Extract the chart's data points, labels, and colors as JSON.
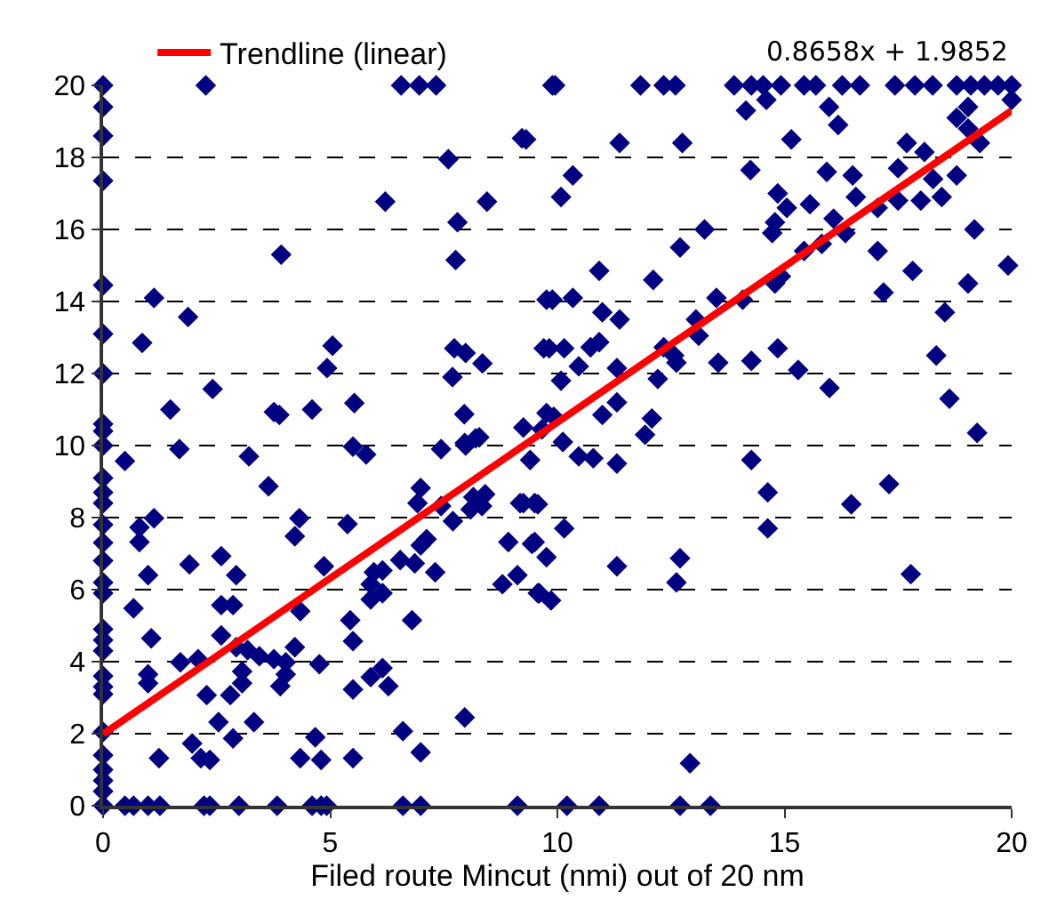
{
  "chart_data": {
    "type": "scatter",
    "xlabel": "Filed route Mincut (nmi) out of 20 nm",
    "xlim": [
      0,
      20
    ],
    "xticks": [
      0,
      5,
      10,
      15,
      20
    ],
    "ylim": [
      0,
      20
    ],
    "yticks": [
      0,
      2,
      4,
      6,
      8,
      10,
      12,
      14,
      16,
      18,
      20
    ],
    "grid": "y",
    "legend": "top",
    "marker": "diamond",
    "annotations": [
      "0.8658x + 1.9852"
    ],
    "series": [
      {
        "color": "#000080",
        "x": [
          0,
          0,
          0,
          0,
          0,
          0,
          0,
          0,
          0,
          0,
          0,
          0,
          0,
          0,
          0,
          0,
          0,
          0,
          0,
          0,
          0,
          0,
          0,
          0,
          0,
          0,
          0,
          0,
          0,
          0,
          2.26,
          6.56,
          6.96,
          7.33,
          9.89,
          9.95,
          11.83,
          12.34,
          12.6,
          13.89,
          14.27,
          14.53,
          14.92,
          15.43,
          15.69,
          16.27,
          16.66,
          17.43,
          17.87,
          18.26,
          18.79,
          19.1,
          19.4,
          19.7,
          20,
          0.48,
          1.12,
          0.86,
          1.87,
          1.48,
          2.41,
          1.68,
          3.21,
          3.92,
          3.76,
          3.88,
          4.6,
          4.93,
          5.05,
          5.53,
          5.5,
          5.79,
          6.21,
          7.44,
          7.6,
          7.8,
          8.45,
          9.22,
          7.76,
          7.73,
          7.98,
          8.35,
          7.69,
          7.95,
          8.2,
          7.98,
          9.89,
          9.82,
          9.66,
          9.92,
          9.4,
          14.6,
          14.15,
          15.98,
          16.18,
          20,
          19.04,
          18.79,
          19.04,
          19.3,
          9.31,
          11.37,
          12.75,
          15.15,
          17.69,
          18.08,
          10.34,
          10.08,
          14.25,
          15.93,
          16.5,
          17.5,
          18.79,
          18.27,
          14.85,
          15.56,
          15.05,
          14.79,
          14.73,
          16.57,
          17.05,
          17.5,
          18.0,
          18.46,
          16.08,
          16.34,
          15.82,
          15.43,
          17.05,
          19.18,
          13.24,
          12.7,
          10.92,
          12.11,
          14.92,
          14.79,
          17.82,
          17.18,
          19.04,
          19.92,
          9.76,
          10.34,
          13.5,
          14.08,
          10.99,
          11.37,
          13.05,
          13.11,
          18.53,
          9.7,
          10.15,
          10.73,
          10.92,
          10.47,
          10.08,
          11.31,
          12.34,
          12.57,
          12.62,
          12.21,
          13.54,
          14.27,
          14.85,
          15.3,
          15.99,
          18.34,
          18.63,
          19.24,
          9.76,
          9.25,
          10.99,
          11.31,
          12.08,
          11.93,
          10.12,
          10.47,
          10.79,
          11.31,
          14.27,
          14.63,
          14.63,
          16.47,
          17.3,
          17.78,
          9.25,
          9.57,
          10.15,
          9.44,
          9.76,
          11.31,
          12.7,
          12.62,
          9.6,
          9.86,
          12.92,
          10.21,
          10.92,
          12.7,
          13.37,
          0.48,
          0.67,
          0.99,
          1.25,
          2.22,
          2.35,
          2.99,
          3.83,
          4.6,
          4.8,
          4.92,
          6.6,
          6.99,
          9.12,
          3.64,
          1.12,
          0.8,
          0.8,
          0.99,
          1.9,
          2.6,
          2.93,
          0.67,
          2.6,
          2.86,
          1.06,
          2.6,
          2.93,
          3.18,
          1.7,
          2.09,
          0.99,
          0.99,
          3.06,
          3.06,
          3.44,
          3.76,
          4.02,
          4.22,
          4.02,
          3.9,
          2.28,
          2.8,
          2.54,
          3.32,
          2.86,
          1.96,
          2.15,
          2.35,
          1.23,
          4.32,
          4.22,
          5.38,
          4.86,
          4.34,
          4.76,
          5.44,
          5.5,
          5.5,
          4.67,
          4.34,
          4.8,
          5.5,
          5.89,
          5.89,
          6.15,
          5.96,
          6.15,
          6.54,
          6.86,
          7.31,
          6.99,
          7.12,
          6.8,
          5.89,
          6.15,
          6.28,
          6.6,
          6.99,
          7.96,
          6.99,
          6.92,
          7.44,
          7.7,
          8.15,
          8.41,
          8.09,
          8.34,
          8.92,
          9.5,
          9.12,
          8.79,
          9.57,
          9.18,
          9.5,
          7.96,
          8.28
        ],
        "values": [
          20,
          19.4,
          18.6,
          17.35,
          14.45,
          13.1,
          12,
          10.6,
          10.4,
          10,
          9.1,
          8.7,
          8.4,
          7.8,
          7.3,
          6.8,
          6.2,
          5.9,
          4.9,
          4.6,
          4.3,
          3.6,
          3.3,
          3.1,
          2.05,
          1.4,
          1.0,
          0.7,
          0.4,
          0,
          20,
          20,
          20,
          20,
          20,
          20,
          20,
          20,
          20,
          20,
          20,
          20,
          20,
          20,
          20,
          20,
          20,
          20,
          20,
          20,
          20,
          20,
          20,
          20,
          20,
          9.57,
          14.1,
          12.85,
          13.57,
          11.0,
          11.57,
          9.9,
          9.7,
          15.3,
          10.93,
          10.85,
          11.0,
          12.15,
          12.77,
          11.18,
          9.97,
          9.75,
          16.77,
          9.9,
          17.95,
          16.2,
          16.77,
          18.53,
          15.15,
          12.7,
          12.57,
          12.28,
          11.9,
          10.87,
          10.2,
          10.0,
          14.05,
          12.7,
          10.45,
          10.8,
          9.6,
          19.6,
          19.3,
          19.4,
          18.9,
          19.6,
          19.4,
          19.1,
          18.8,
          18.4,
          18.5,
          18.4,
          18.4,
          18.5,
          18.4,
          18.15,
          17.5,
          16.9,
          17.65,
          17.6,
          17.5,
          17.7,
          17.5,
          17.4,
          17.0,
          16.7,
          16.6,
          16.2,
          15.9,
          16.9,
          16.6,
          16.8,
          16.8,
          16.9,
          16.3,
          15.9,
          15.6,
          15.4,
          15.4,
          16.0,
          16.0,
          15.5,
          14.85,
          14.6,
          14.7,
          14.5,
          14.85,
          14.25,
          14.5,
          15.0,
          14.05,
          14.1,
          14.1,
          14.05,
          13.7,
          13.5,
          13.5,
          13.05,
          13.7,
          12.7,
          12.7,
          12.73,
          12.87,
          12.2,
          11.8,
          12.15,
          12.73,
          12.5,
          12.3,
          11.85,
          12.3,
          12.35,
          12.7,
          12.1,
          11.6,
          12.5,
          11.3,
          10.35,
          10.9,
          10.5,
          10.85,
          11.2,
          10.75,
          10.3,
          10.1,
          9.7,
          9.65,
          9.5,
          9.6,
          8.7,
          7.7,
          8.37,
          8.93,
          6.43,
          8.4,
          8.37,
          7.7,
          7.27,
          6.9,
          6.65,
          6.87,
          6.2,
          5.9,
          5.7,
          1.18,
          0,
          0,
          0,
          0,
          0,
          0,
          0,
          0,
          0,
          0,
          0,
          0,
          0,
          0,
          0,
          0,
          0,
          0,
          8.87,
          7.98,
          7.73,
          7.32,
          6.4,
          6.7,
          6.93,
          6.4,
          5.48,
          5.57,
          5.57,
          4.65,
          4.73,
          4.4,
          4.32,
          3.98,
          4.07,
          3.65,
          3.4,
          3.73,
          3.4,
          4.15,
          4.07,
          3.98,
          4.4,
          3.65,
          3.32,
          3.07,
          3.07,
          2.32,
          2.32,
          1.87,
          1.73,
          1.32,
          1.27,
          1.32,
          7.98,
          7.48,
          7.82,
          6.65,
          5.4,
          3.93,
          5.15,
          4.57,
          3.23,
          1.9,
          1.32,
          1.27,
          1.32,
          6.15,
          5.73,
          5.9,
          6.48,
          6.53,
          6.82,
          6.73,
          6.48,
          7.23,
          7.4,
          5.15,
          3.57,
          3.82,
          3.32,
          2.07,
          1.48,
          2.45,
          8.82,
          8.4,
          8.32,
          7.9,
          8.57,
          8.65,
          8.23,
          8.32,
          7.32,
          7.32,
          6.4,
          6.15,
          5.9,
          8.4,
          8.4,
          10.07,
          10.23
        ]
      },
      {
        "type": "line",
        "name": "Trendline (linear)",
        "color": "#ff0000",
        "marker": "none",
        "line_style": "solid",
        "x": [
          0,
          20
        ],
        "values": [
          1.99,
          19.3
        ]
      }
    ]
  }
}
